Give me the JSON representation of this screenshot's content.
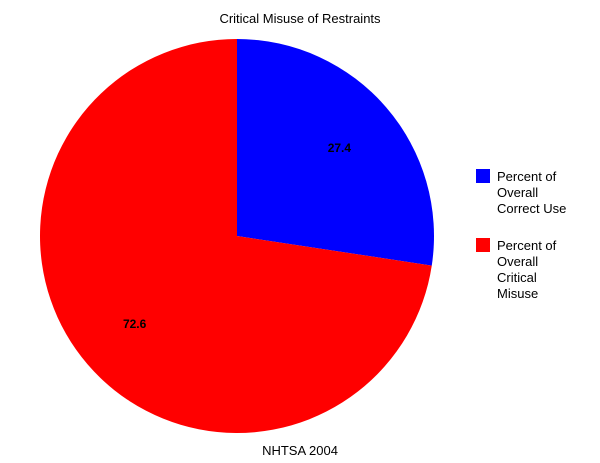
{
  "chart_data": {
    "type": "pie",
    "title": "Critical Misuse of Restraints",
    "footer": "NHTSA 2004",
    "slices": [
      {
        "name": "Percent of Overall Correct Use",
        "legend_lines": [
          "Percent of",
          "Overall",
          "Correct Use"
        ],
        "value": 27.4,
        "label": "27.4",
        "color": "#0000ff"
      },
      {
        "name": "Percent of Overall Critical Misuse",
        "legend_lines": [
          "Percent of",
          "Overall",
          "Critical",
          "Misuse"
        ],
        "value": 72.6,
        "label": "72.6",
        "color": "#ff0000"
      }
    ],
    "start": "top",
    "direction": "clockwise",
    "legend_position": "right",
    "grid": false
  }
}
